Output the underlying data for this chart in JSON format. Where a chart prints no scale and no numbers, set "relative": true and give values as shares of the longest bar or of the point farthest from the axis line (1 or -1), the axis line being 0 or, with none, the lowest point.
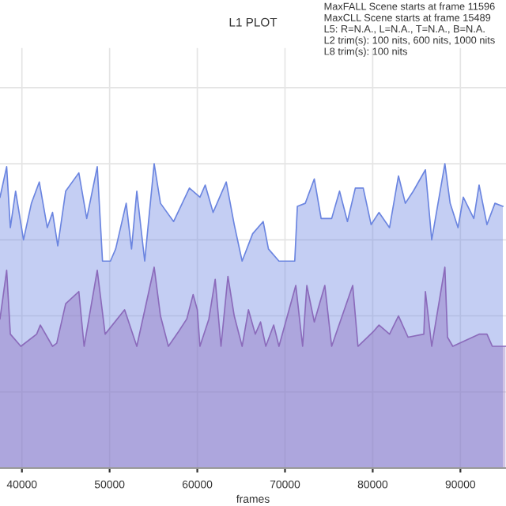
{
  "chart_data": {
    "type": "area",
    "title": "L1 PLOT",
    "xlabel": "frames",
    "relative": true,
    "annotations": [
      "MaxFALL Scene starts at frame 11596",
      "MaxCLL Scene starts at frame 15489",
      "L5: R=N.A., L=N.A., T=N.A., B=N.A.",
      "L2 trim(s): 100 nits, 600 nits, 1000 nits",
      "L8 trim(s): 100 nits"
    ],
    "xlim": [
      37500,
      95200
    ],
    "xticks": [
      40000,
      50000,
      60000,
      70000,
      80000,
      90000
    ],
    "grid": true,
    "tick_labels": "x",
    "series": [
      {
        "color": "#6b85e0",
        "x": [
          37500,
          38260,
          38680,
          39280,
          40180,
          41080,
          41980,
          42890,
          43490,
          44090,
          44990,
          46490,
          47390,
          48590,
          49190,
          50090,
          50690,
          51890,
          52500,
          53100,
          54000,
          55080,
          55800,
          57300,
          59100,
          60300,
          60900,
          61800,
          63300,
          64210,
          65110,
          66310,
          67510,
          68110,
          69310,
          71110,
          71410,
          72310,
          73340,
          74120,
          75320,
          76220,
          77120,
          78020,
          78920,
          79820,
          80720,
          81920,
          82940,
          83720,
          84630,
          86010,
          86730,
          88230,
          88830,
          89730,
          90330,
          91530,
          92130,
          93030,
          93940,
          94840
        ],
        "values": [
          0.89,
          0.99,
          0.79,
          0.91,
          0.75,
          0.87,
          0.94,
          0.79,
          0.84,
          0.73,
          0.91,
          0.97,
          0.82,
          0.99,
          0.68,
          0.68,
          0.72,
          0.87,
          0.72,
          0.91,
          0.68,
          1.0,
          0.87,
          0.81,
          0.92,
          0.89,
          0.93,
          0.84,
          0.94,
          0.8,
          0.68,
          0.77,
          0.81,
          0.72,
          0.68,
          0.68,
          0.86,
          0.87,
          0.95,
          0.82,
          0.82,
          0.91,
          0.81,
          0.92,
          0.92,
          0.8,
          0.84,
          0.79,
          0.96,
          0.87,
          0.91,
          0.98,
          0.75,
          1.0,
          0.87,
          0.79,
          0.89,
          0.82,
          0.93,
          0.8,
          0.87,
          0.86
        ]
      },
      {
        "color": "#8b6bbb",
        "x": [
          37500,
          38260,
          38680,
          39880,
          41680,
          42100,
          43490,
          43970,
          44990,
          46490,
          47090,
          48590,
          49490,
          51710,
          53100,
          55080,
          55800,
          56700,
          57900,
          58800,
          59520,
          60000,
          60300,
          61320,
          62040,
          62700,
          63490,
          64210,
          65110,
          65830,
          66610,
          67210,
          67810,
          68710,
          69310,
          71230,
          72010,
          72490,
          73340,
          74540,
          75320,
          77720,
          78320,
          80120,
          80720,
          81920,
          82940,
          84030,
          85830,
          86010,
          86730,
          88230,
          88530,
          89130,
          92130,
          93030,
          93640,
          95140
        ],
        "values": [
          0.49,
          0.65,
          0.44,
          0.4,
          0.44,
          0.47,
          0.4,
          0.41,
          0.54,
          0.58,
          0.4,
          0.65,
          0.44,
          0.52,
          0.4,
          0.66,
          0.5,
          0.4,
          0.45,
          0.49,
          0.57,
          0.52,
          0.4,
          0.49,
          0.62,
          0.4,
          0.63,
          0.5,
          0.4,
          0.52,
          0.44,
          0.48,
          0.4,
          0.47,
          0.4,
          0.6,
          0.4,
          0.6,
          0.48,
          0.6,
          0.4,
          0.6,
          0.4,
          0.45,
          0.47,
          0.44,
          0.5,
          0.43,
          0.44,
          0.58,
          0.4,
          0.66,
          0.43,
          0.4,
          0.44,
          0.44,
          0.4,
          0.4
        ]
      }
    ]
  }
}
